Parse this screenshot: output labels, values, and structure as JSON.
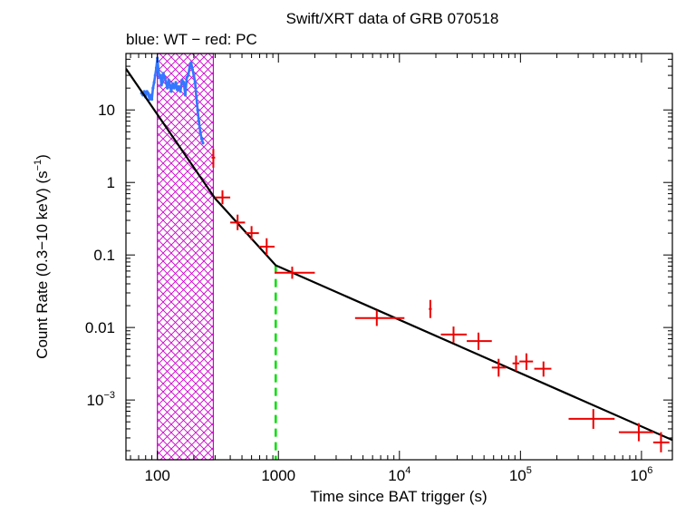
{
  "chart_data": {
    "type": "scatter",
    "title": "Swift/XRT data of GRB 070518",
    "subtitle": "blue: WT − red: PC",
    "xlabel": "Time since BAT trigger (s)",
    "ylabel_parts": [
      "Count Rate (0.3−10 keV) (s",
      "−1",
      ")"
    ],
    "x_scale": "log",
    "y_scale": "log",
    "xlim": [
      55,
      1800000
    ],
    "ylim": [
      0.00015,
      60
    ],
    "x_ticks": [
      {
        "value": 100,
        "label": "100",
        "sup": ""
      },
      {
        "value": 1000,
        "label": "1000",
        "sup": ""
      },
      {
        "value": 10000,
        "label": "10",
        "sup": "4"
      },
      {
        "value": 100000,
        "label": "10",
        "sup": "5"
      },
      {
        "value": 1000000,
        "label": "10",
        "sup": "6"
      }
    ],
    "y_ticks": [
      {
        "value": 10,
        "label": "10",
        "sup": ""
      },
      {
        "value": 1,
        "label": "1",
        "sup": ""
      },
      {
        "value": 0.1,
        "label": "0.1",
        "sup": ""
      },
      {
        "value": 0.01,
        "label": "0.01",
        "sup": ""
      },
      {
        "value": 0.001,
        "label": "10",
        "sup": "−3"
      }
    ],
    "shaded_region": {
      "x": [
        100,
        290
      ],
      "color": "#cc00cc",
      "label": "hatched interval"
    },
    "break_line": {
      "x": 950,
      "color": "#00dd00"
    },
    "colors": {
      "wt": "#3377ff",
      "pc": "#ee0000",
      "model": "#000000"
    },
    "series": [
      {
        "name": "WT",
        "x": [
          74,
          76,
          78,
          80,
          82,
          84,
          86,
          88,
          90,
          92,
          94,
          96,
          98,
          100,
          102,
          104,
          106,
          108,
          110,
          112,
          115,
          118,
          121,
          124,
          127,
          130,
          134,
          138,
          142,
          146,
          150,
          155,
          160,
          165,
          170,
          175,
          180,
          185,
          190,
          195,
          200,
          205,
          210,
          215,
          220,
          226,
          232,
          238
        ],
        "y": [
          17,
          16,
          18,
          15,
          18,
          17,
          14,
          16,
          14,
          20,
          24,
          30,
          38,
          52,
          36,
          28,
          30,
          22,
          24,
          32,
          28,
          24,
          20,
          26,
          22,
          18,
          23,
          20,
          24,
          19,
          21,
          18,
          26,
          24,
          16,
          28,
          30,
          40,
          45,
          36,
          30,
          24,
          15,
          10,
          7,
          5,
          4,
          3.5
        ]
      },
      {
        "name": "PC",
        "points": [
          {
            "x": 290,
            "y": 2.2,
            "xlo": 280,
            "xhi": 300,
            "ylo": 1.6,
            "yhi": 2.9
          },
          {
            "x": 345,
            "y": 0.62,
            "xlo": 300,
            "xhi": 400,
            "ylo": 0.5,
            "yhi": 0.78
          },
          {
            "x": 460,
            "y": 0.28,
            "xlo": 400,
            "xhi": 530,
            "ylo": 0.22,
            "yhi": 0.36
          },
          {
            "x": 600,
            "y": 0.2,
            "xlo": 530,
            "xhi": 690,
            "ylo": 0.16,
            "yhi": 0.25
          },
          {
            "x": 800,
            "y": 0.13,
            "xlo": 690,
            "xhi": 930,
            "ylo": 0.1,
            "yhi": 0.17
          },
          {
            "x": 1300,
            "y": 0.057,
            "xlo": 930,
            "xhi": 2000,
            "ylo": 0.047,
            "yhi": 0.069
          },
          {
            "x": 6500,
            "y": 0.0135,
            "xlo": 4300,
            "xhi": 11000,
            "ylo": 0.0105,
            "yhi": 0.0172
          },
          {
            "x": 18000,
            "y": 0.018,
            "xlo": 17500,
            "xhi": 18500,
            "ylo": 0.0135,
            "yhi": 0.024
          },
          {
            "x": 28000,
            "y": 0.008,
            "xlo": 22000,
            "xhi": 36000,
            "ylo": 0.0062,
            "yhi": 0.0103
          },
          {
            "x": 45000,
            "y": 0.0065,
            "xlo": 36000,
            "xhi": 58000,
            "ylo": 0.0049,
            "yhi": 0.0085
          },
          {
            "x": 66000,
            "y": 0.0028,
            "xlo": 58000,
            "xhi": 76000,
            "ylo": 0.0021,
            "yhi": 0.0037
          },
          {
            "x": 92000,
            "y": 0.0032,
            "xlo": 86000,
            "xhi": 98000,
            "ylo": 0.0025,
            "yhi": 0.0041
          },
          {
            "x": 112000,
            "y": 0.0034,
            "xlo": 98000,
            "xhi": 127000,
            "ylo": 0.0026,
            "yhi": 0.0044
          },
          {
            "x": 155000,
            "y": 0.0027,
            "xlo": 130000,
            "xhi": 180000,
            "ylo": 0.0021,
            "yhi": 0.0034
          },
          {
            "x": 400000,
            "y": 0.00055,
            "xlo": 250000,
            "xhi": 600000,
            "ylo": 0.0004,
            "yhi": 0.00075
          },
          {
            "x": 950000,
            "y": 0.00036,
            "xlo": 650000,
            "xhi": 1250000,
            "ylo": 0.00027,
            "yhi": 0.00048
          },
          {
            "x": 1450000,
            "y": 0.00026,
            "xlo": 1250000,
            "xhi": 1700000,
            "ylo": 0.00019,
            "yhi": 0.00036
          }
        ]
      },
      {
        "name": "Model",
        "type": "line",
        "x": [
          55,
          300,
          950,
          1800000
        ],
        "y": [
          37,
          0.6,
          0.072,
          0.00028
        ]
      }
    ]
  }
}
